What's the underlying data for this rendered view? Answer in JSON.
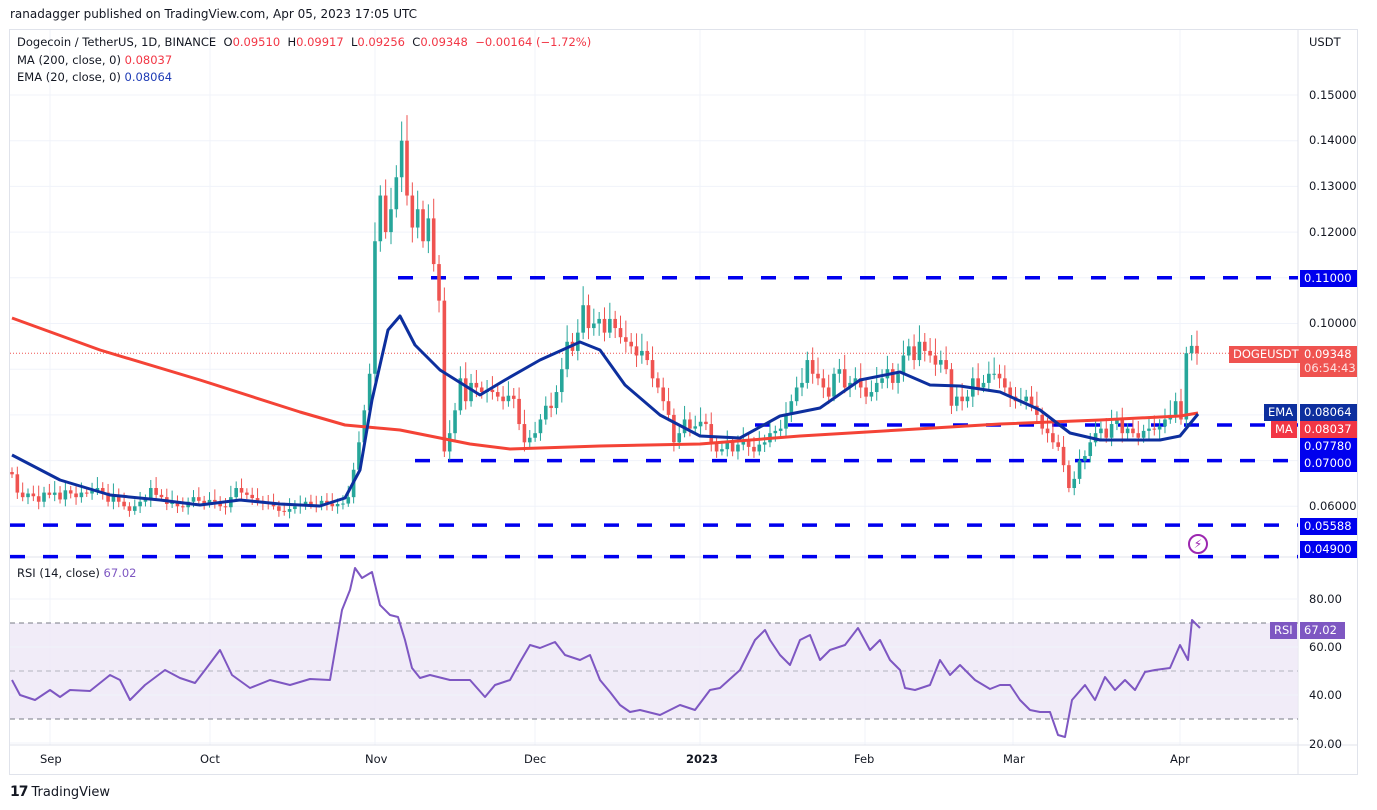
{
  "header": {
    "published": "ranadagger published on TradingView.com, Apr 05, 2023 17:05 UTC"
  },
  "legend": {
    "symbol": "Dogecoin / TetherUS, 1D, BINANCE",
    "o_label": "O",
    "o": "0.09510",
    "h_label": "H",
    "h": "0.09917",
    "l_label": "L",
    "l": "0.09256",
    "c_label": "C",
    "c": "0.09348",
    "change": "−0.00164 (−1.72%)",
    "ma_label": "MA (200, close, 0)",
    "ma_value": "0.08037",
    "ema_label": "EMA (20, close, 0)",
    "ema_value": "0.08064",
    "rsi_label": "RSI (14, close)",
    "rsi_value": "67.02"
  },
  "price_axis": {
    "currency": "USDT",
    "ticks": [
      "0.15000",
      "0.14000",
      "0.13000",
      "0.12000",
      "0.10000",
      "0.06000"
    ]
  },
  "price_tags": {
    "symbol_tag": "DOGEUSDT",
    "last_price": "0.09348",
    "countdown": "06:54:43",
    "ema_tag": "EMA",
    "ema_value": "0.08064",
    "ma_tag": "MA",
    "ma_value": "0.08037",
    "levels": [
      "0.11000",
      "0.07780",
      "0.07000",
      "0.05588",
      "0.04900"
    ]
  },
  "rsi_axis": {
    "ticks": [
      "80.00",
      "60.00",
      "40.00",
      "20.00"
    ],
    "tag": "RSI",
    "value": "67.02"
  },
  "time_axis": {
    "labels": [
      "Sep",
      "Oct",
      "Nov",
      "Dec",
      "2023",
      "Feb",
      "Mar",
      "Apr"
    ]
  },
  "footer": {
    "brand": "TradingView",
    "logo": "17"
  },
  "colors": {
    "up": "#26a69a",
    "down": "#ef5350",
    "ma": "#f44336",
    "ema": "#0d2f9e",
    "levels": "#0000ee",
    "rsi": "#7e57c2",
    "rsi_band": "#ede7f6"
  },
  "chart_data": {
    "type": "candlestick",
    "title": "Dogecoin / TetherUS, 1D, BINANCE",
    "ylabel": "USDT",
    "ylim": [
      0.049,
      0.16
    ],
    "x_labels": [
      "Sep",
      "Oct",
      "Nov",
      "Dec",
      "2023",
      "Feb",
      "Mar",
      "Apr"
    ],
    "closes": [
      0.067,
      0.063,
      0.062,
      0.0628,
      0.0622,
      0.061,
      0.063,
      0.0625,
      0.063,
      0.0615,
      0.0635,
      0.0628,
      0.062,
      0.063,
      0.0628,
      0.0634,
      0.064,
      0.063,
      0.061,
      0.0625,
      0.061,
      0.06,
      0.059,
      0.06,
      0.061,
      0.0615,
      0.064,
      0.0625,
      0.062,
      0.0605,
      0.061,
      0.06,
      0.0598,
      0.061,
      0.062,
      0.0612,
      0.0606,
      0.0614,
      0.061,
      0.06,
      0.0598,
      0.062,
      0.064,
      0.063,
      0.0625,
      0.0618,
      0.0612,
      0.0608,
      0.0605,
      0.06,
      0.059,
      0.0588,
      0.0594,
      0.06,
      0.0604,
      0.061,
      0.0602,
      0.06,
      0.0612,
      0.0606,
      0.06,
      0.0605,
      0.0606,
      0.062,
      0.068,
      0.074,
      0.081,
      0.089,
      0.118,
      0.128,
      0.12,
      0.125,
      0.132,
      0.14,
      0.128,
      0.121,
      0.125,
      0.118,
      0.123,
      0.113,
      0.105,
      0.072,
      0.076,
      0.081,
      0.088,
      0.083,
      0.087,
      0.086,
      0.085,
      0.0855,
      0.085,
      0.084,
      0.083,
      0.0842,
      0.0835,
      0.078,
      0.074,
      0.075,
      0.076,
      0.079,
      0.082,
      0.0815,
      0.085,
      0.09,
      0.096,
      0.094,
      0.098,
      0.104,
      0.099,
      0.1,
      0.101,
      0.098,
      0.101,
      0.099,
      0.097,
      0.096,
      0.095,
      0.093,
      0.094,
      0.092,
      0.088,
      0.086,
      0.083,
      0.08,
      0.074,
      0.076,
      0.079,
      0.077,
      0.0775,
      0.0785,
      0.078,
      0.074,
      0.072,
      0.0725,
      0.074,
      0.072,
      0.0735,
      0.0745,
      0.073,
      0.072,
      0.0735,
      0.074,
      0.076,
      0.0765,
      0.077,
      0.08,
      0.083,
      0.086,
      0.087,
      0.092,
      0.089,
      0.088,
      0.086,
      0.084,
      0.089,
      0.09,
      0.086,
      0.087,
      0.088,
      0.086,
      0.084,
      0.085,
      0.087,
      0.088,
      0.09,
      0.087,
      0.089,
      0.093,
      0.095,
      0.092,
      0.096,
      0.094,
      0.093,
      0.091,
      0.092,
      0.09,
      0.082,
      0.084,
      0.083,
      0.084,
      0.088,
      0.086,
      0.087,
      0.089,
      0.089,
      0.088,
      0.086,
      0.084,
      0.083,
      0.083,
      0.084,
      0.082,
      0.08,
      0.077,
      0.076,
      0.074,
      0.073,
      0.069,
      0.064,
      0.066,
      0.07,
      0.071,
      0.074,
      0.076,
      0.077,
      0.075,
      0.078,
      0.079,
      0.076,
      0.077,
      0.076,
      0.075,
      0.0765,
      0.077,
      0.0768,
      0.0775,
      0.079,
      0.08,
      0.083,
      0.079,
      0.0935,
      0.0951,
      0.0935
    ],
    "ma200": [
      [
        12,
        318
      ],
      [
        100,
        350
      ],
      [
        200,
        380
      ],
      [
        300,
        412
      ],
      [
        345,
        425
      ],
      [
        400,
        430
      ],
      [
        440,
        438
      ],
      [
        470,
        444
      ],
      [
        510,
        449
      ],
      [
        600,
        446
      ],
      [
        700,
        444
      ],
      [
        800,
        436
      ],
      [
        900,
        430
      ],
      [
        1000,
        424
      ],
      [
        1100,
        420
      ],
      [
        1180,
        416
      ],
      [
        1198,
        413
      ]
    ],
    "ema20": [
      [
        12,
        455
      ],
      [
        60,
        480
      ],
      [
        110,
        495
      ],
      [
        160,
        500
      ],
      [
        200,
        505
      ],
      [
        240,
        500
      ],
      [
        280,
        504
      ],
      [
        320,
        506
      ],
      [
        345,
        498
      ],
      [
        360,
        470
      ],
      [
        372,
        400
      ],
      [
        388,
        330
      ],
      [
        400,
        316
      ],
      [
        415,
        345
      ],
      [
        440,
        370
      ],
      [
        480,
        395
      ],
      [
        505,
        380
      ],
      [
        540,
        360
      ],
      [
        580,
        342
      ],
      [
        600,
        350
      ],
      [
        625,
        385
      ],
      [
        660,
        415
      ],
      [
        700,
        436
      ],
      [
        740,
        438
      ],
      [
        780,
        416
      ],
      [
        820,
        408
      ],
      [
        860,
        380
      ],
      [
        900,
        372
      ],
      [
        930,
        385
      ],
      [
        960,
        386
      ],
      [
        1000,
        392
      ],
      [
        1040,
        410
      ],
      [
        1070,
        433
      ],
      [
        1100,
        440
      ],
      [
        1160,
        440
      ],
      [
        1180,
        436
      ],
      [
        1198,
        414
      ]
    ],
    "rsi": [
      [
        12,
        680
      ],
      [
        20,
        695
      ],
      [
        35,
        700
      ],
      [
        50,
        690
      ],
      [
        60,
        697
      ],
      [
        70,
        690
      ],
      [
        90,
        691
      ],
      [
        110,
        675
      ],
      [
        120,
        680
      ],
      [
        130,
        700
      ],
      [
        145,
        685
      ],
      [
        165,
        670
      ],
      [
        180,
        678
      ],
      [
        195,
        683
      ],
      [
        205,
        670
      ],
      [
        220,
        650
      ],
      [
        232,
        675
      ],
      [
        250,
        688
      ],
      [
        270,
        680
      ],
      [
        290,
        685
      ],
      [
        310,
        679
      ],
      [
        330,
        680
      ],
      [
        342,
        610
      ],
      [
        350,
        590
      ],
      [
        355,
        568
      ],
      [
        362,
        578
      ],
      [
        372,
        572
      ],
      [
        380,
        605
      ],
      [
        390,
        615
      ],
      [
        398,
        617
      ],
      [
        405,
        640
      ],
      [
        412,
        668
      ],
      [
        420,
        678
      ],
      [
        430,
        675
      ],
      [
        450,
        680
      ],
      [
        470,
        680
      ],
      [
        485,
        697
      ],
      [
        495,
        685
      ],
      [
        510,
        680
      ],
      [
        520,
        662
      ],
      [
        530,
        645
      ],
      [
        540,
        648
      ],
      [
        555,
        642
      ],
      [
        565,
        655
      ],
      [
        580,
        660
      ],
      [
        590,
        655
      ],
      [
        600,
        680
      ],
      [
        610,
        692
      ],
      [
        620,
        705
      ],
      [
        630,
        712
      ],
      [
        640,
        710
      ],
      [
        660,
        715
      ],
      [
        680,
        705
      ],
      [
        695,
        710
      ],
      [
        710,
        690
      ],
      [
        720,
        688
      ],
      [
        740,
        670
      ],
      [
        755,
        640
      ],
      [
        765,
        630
      ],
      [
        770,
        640
      ],
      [
        780,
        655
      ],
      [
        790,
        665
      ],
      [
        800,
        640
      ],
      [
        810,
        635
      ],
      [
        820,
        660
      ],
      [
        830,
        650
      ],
      [
        845,
        645
      ],
      [
        858,
        628
      ],
      [
        870,
        650
      ],
      [
        880,
        640
      ],
      [
        890,
        660
      ],
      [
        900,
        670
      ],
      [
        905,
        688
      ],
      [
        915,
        690
      ],
      [
        930,
        685
      ],
      [
        940,
        660
      ],
      [
        950,
        675
      ],
      [
        960,
        665
      ],
      [
        975,
        680
      ],
      [
        990,
        689
      ],
      [
        1000,
        685
      ],
      [
        1010,
        685
      ],
      [
        1020,
        700
      ],
      [
        1030,
        710
      ],
      [
        1040,
        712
      ],
      [
        1050,
        712
      ],
      [
        1058,
        735
      ],
      [
        1065,
        737
      ],
      [
        1072,
        700
      ],
      [
        1085,
        685
      ],
      [
        1095,
        700
      ],
      [
        1105,
        677
      ],
      [
        1115,
        690
      ],
      [
        1125,
        680
      ],
      [
        1135,
        690
      ],
      [
        1145,
        672
      ],
      [
        1155,
        670
      ],
      [
        1170,
        668
      ],
      [
        1180,
        645
      ],
      [
        1188,
        660
      ],
      [
        1192,
        620
      ],
      [
        1200,
        628
      ]
    ]
  }
}
